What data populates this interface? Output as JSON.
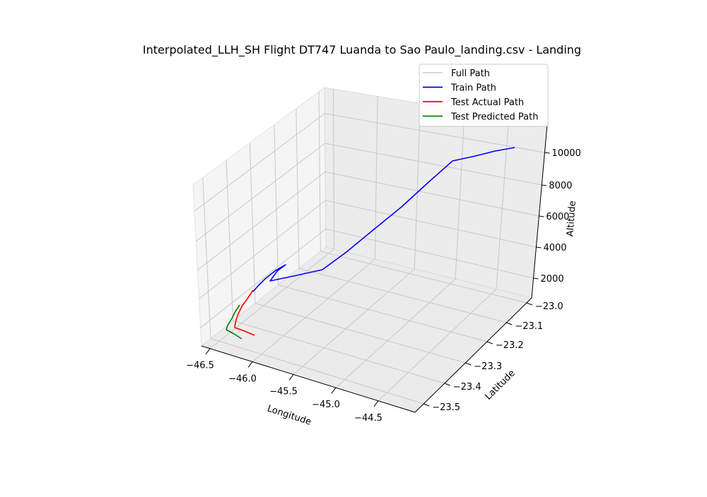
{
  "chart_data": {
    "type": "line3d",
    "title": "Interpolated_LLH_SH Flight DT747 Luanda to Sao Paulo_landing.csv - Landing",
    "xlabel": "Longitude",
    "ylabel": "Latitude",
    "zlabel": "Altitude",
    "xticks": [
      "−46.5",
      "−46.0",
      "−45.5",
      "−45.0",
      "−44.5"
    ],
    "yticks": [
      "−23.0",
      "−23.1",
      "−23.2",
      "−23.3",
      "−23.4",
      "−23.5"
    ],
    "zticks": [
      "2000",
      "4000",
      "6000",
      "8000",
      "10000"
    ],
    "grid": true,
    "legend": "upper-right",
    "legend_entries": [
      {
        "name": "Full Path",
        "color": "#d3d3d3"
      },
      {
        "name": "Train Path",
        "color": "#0000ff"
      },
      {
        "name": "Test Actual Path",
        "color": "#ff0000"
      },
      {
        "name": "Test Predicted Path",
        "color": "#008000"
      }
    ],
    "series": [
      {
        "name": "Train Path",
        "color": "#0000ff",
        "points": [
          [
            728,
            209
          ],
          [
            700,
            214
          ],
          [
            672,
            221
          ],
          [
            640,
            228
          ],
          [
            604,
            260
          ],
          [
            568,
            293
          ],
          [
            530,
            324
          ],
          [
            490,
            357
          ],
          [
            456,
            382
          ],
          [
            420,
            390
          ],
          [
            382,
            398
          ],
          [
            392,
            384
          ],
          [
            404,
            375
          ],
          [
            390,
            383
          ],
          [
            375,
            395
          ],
          [
            365,
            405
          ],
          [
            358,
            413
          ]
        ]
      },
      {
        "name": "Test Actual Path",
        "color": "#ff0000",
        "points": [
          [
            358,
            411
          ],
          [
            350,
            423
          ],
          [
            342,
            434
          ],
          [
            336,
            447
          ],
          [
            333,
            457
          ],
          [
            332,
            464
          ],
          [
            346,
            469
          ],
          [
            360,
            475
          ]
        ]
      },
      {
        "name": "Test Predicted Path",
        "color": "#008000",
        "points": [
          [
            339,
            432
          ],
          [
            333,
            441
          ],
          [
            328,
            451
          ],
          [
            322,
            461
          ],
          [
            320,
            467
          ],
          [
            331,
            473
          ],
          [
            342,
            480
          ]
        ]
      }
    ]
  }
}
